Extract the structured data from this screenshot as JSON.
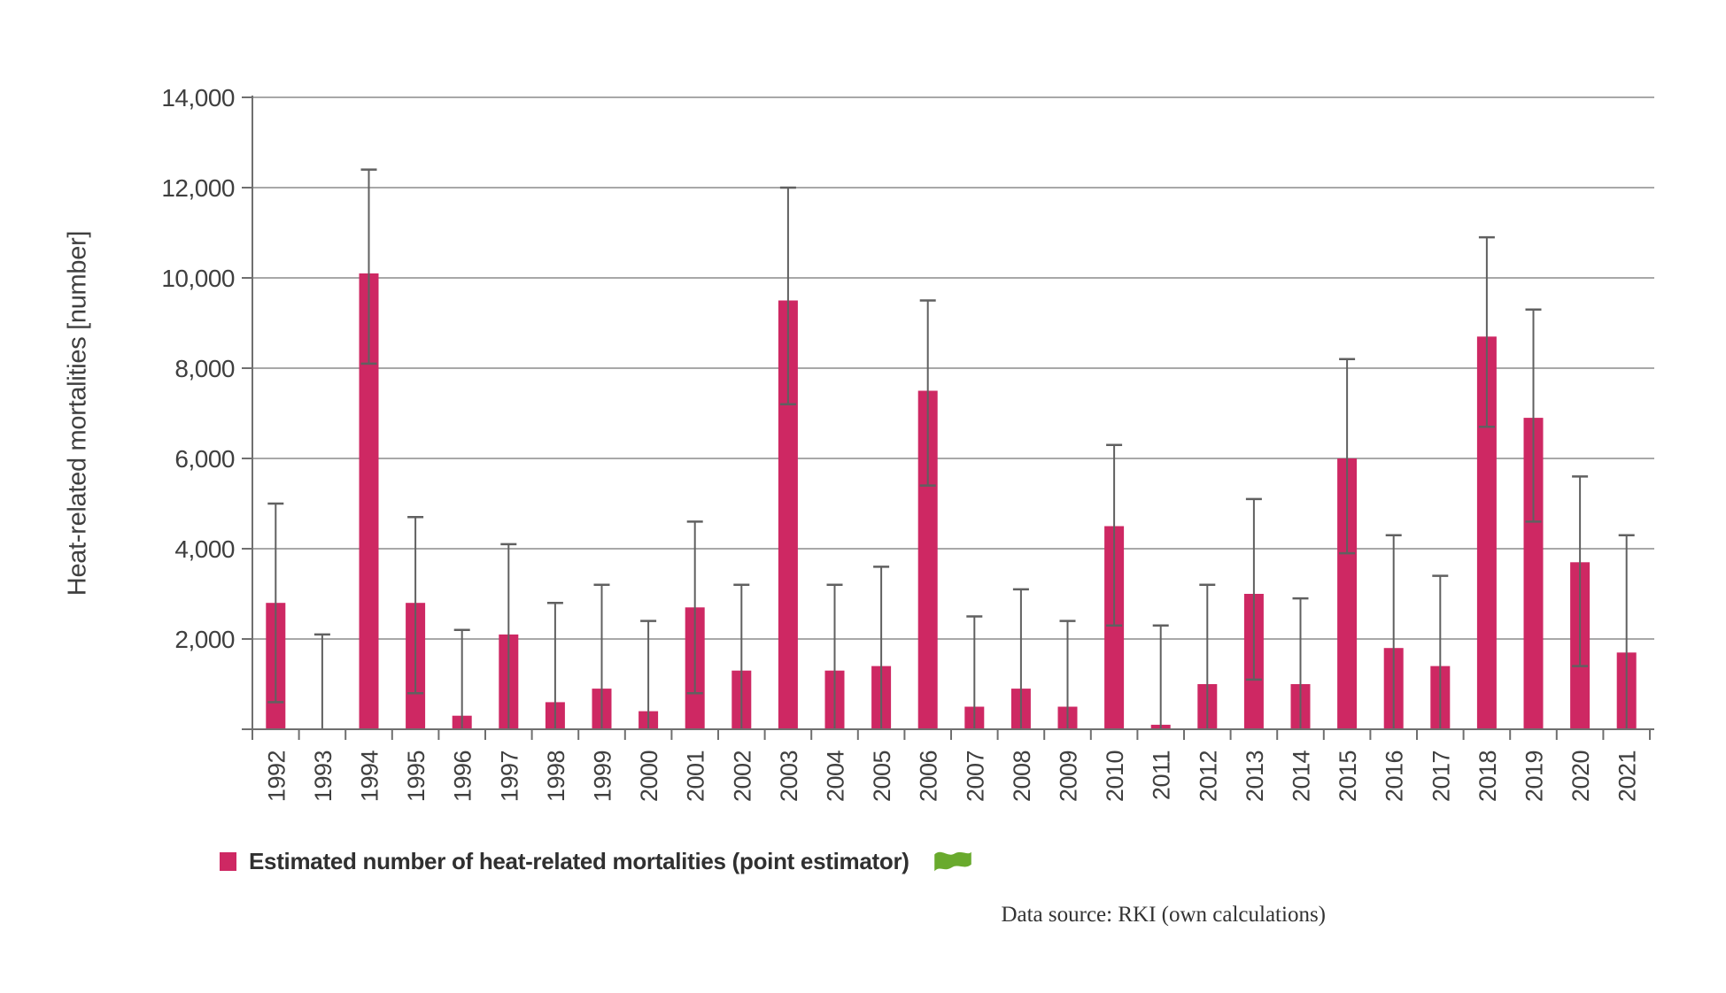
{
  "chart_data": {
    "type": "bar",
    "title": "",
    "xlabel": "",
    "ylabel": "Heat-related mortalities [number]",
    "ylim": [
      0,
      14000
    ],
    "ytick_step": 2000,
    "grid": true,
    "legend_position": "bottom-left",
    "categories": [
      "1992",
      "1993",
      "1994",
      "1995",
      "1996",
      "1997",
      "1998",
      "1999",
      "2000",
      "2001",
      "2002",
      "2003",
      "2004",
      "2005",
      "2006",
      "2007",
      "2008",
      "2009",
      "2010",
      "2011",
      "2012",
      "2013",
      "2014",
      "2015",
      "2016",
      "2017",
      "2018",
      "2019",
      "2020",
      "2021"
    ],
    "series": [
      {
        "name": "Estimated number of heat-related mortalities (point estimator)",
        "values": [
          2800,
          0,
          10100,
          2800,
          300,
          2100,
          600,
          900,
          400,
          2700,
          1300,
          9500,
          1300,
          1400,
          7500,
          500,
          900,
          500,
          4500,
          100,
          1000,
          3000,
          1000,
          6000,
          1800,
          1400,
          8700,
          6900,
          3700,
          1700
        ],
        "ci_low": [
          600,
          0,
          8100,
          800,
          0,
          0,
          0,
          0,
          0,
          800,
          0,
          7200,
          0,
          0,
          5400,
          0,
          0,
          0,
          2300,
          0,
          0,
          1100,
          0,
          3900,
          0,
          0,
          6700,
          4600,
          1400,
          0
        ],
        "ci_high": [
          5000,
          2100,
          12400,
          4700,
          2200,
          4100,
          2800,
          3200,
          2400,
          4600,
          3200,
          12000,
          3200,
          3600,
          9500,
          2500,
          3100,
          2400,
          6300,
          2300,
          3200,
          5100,
          2900,
          8200,
          4300,
          3400,
          10900,
          9300,
          5600,
          4300
        ]
      }
    ],
    "colors": {
      "bar": "#ce2863",
      "error_bar": "#606060",
      "grid": "#8c8c8c",
      "axis": "#6f6f6f",
      "text": "#3f3f3f"
    }
  },
  "legend": {
    "flag_icon": "green-flag",
    "flag_color": "#69aa2d"
  },
  "footer": {
    "text": "Data source: RKI (own calculations)"
  }
}
